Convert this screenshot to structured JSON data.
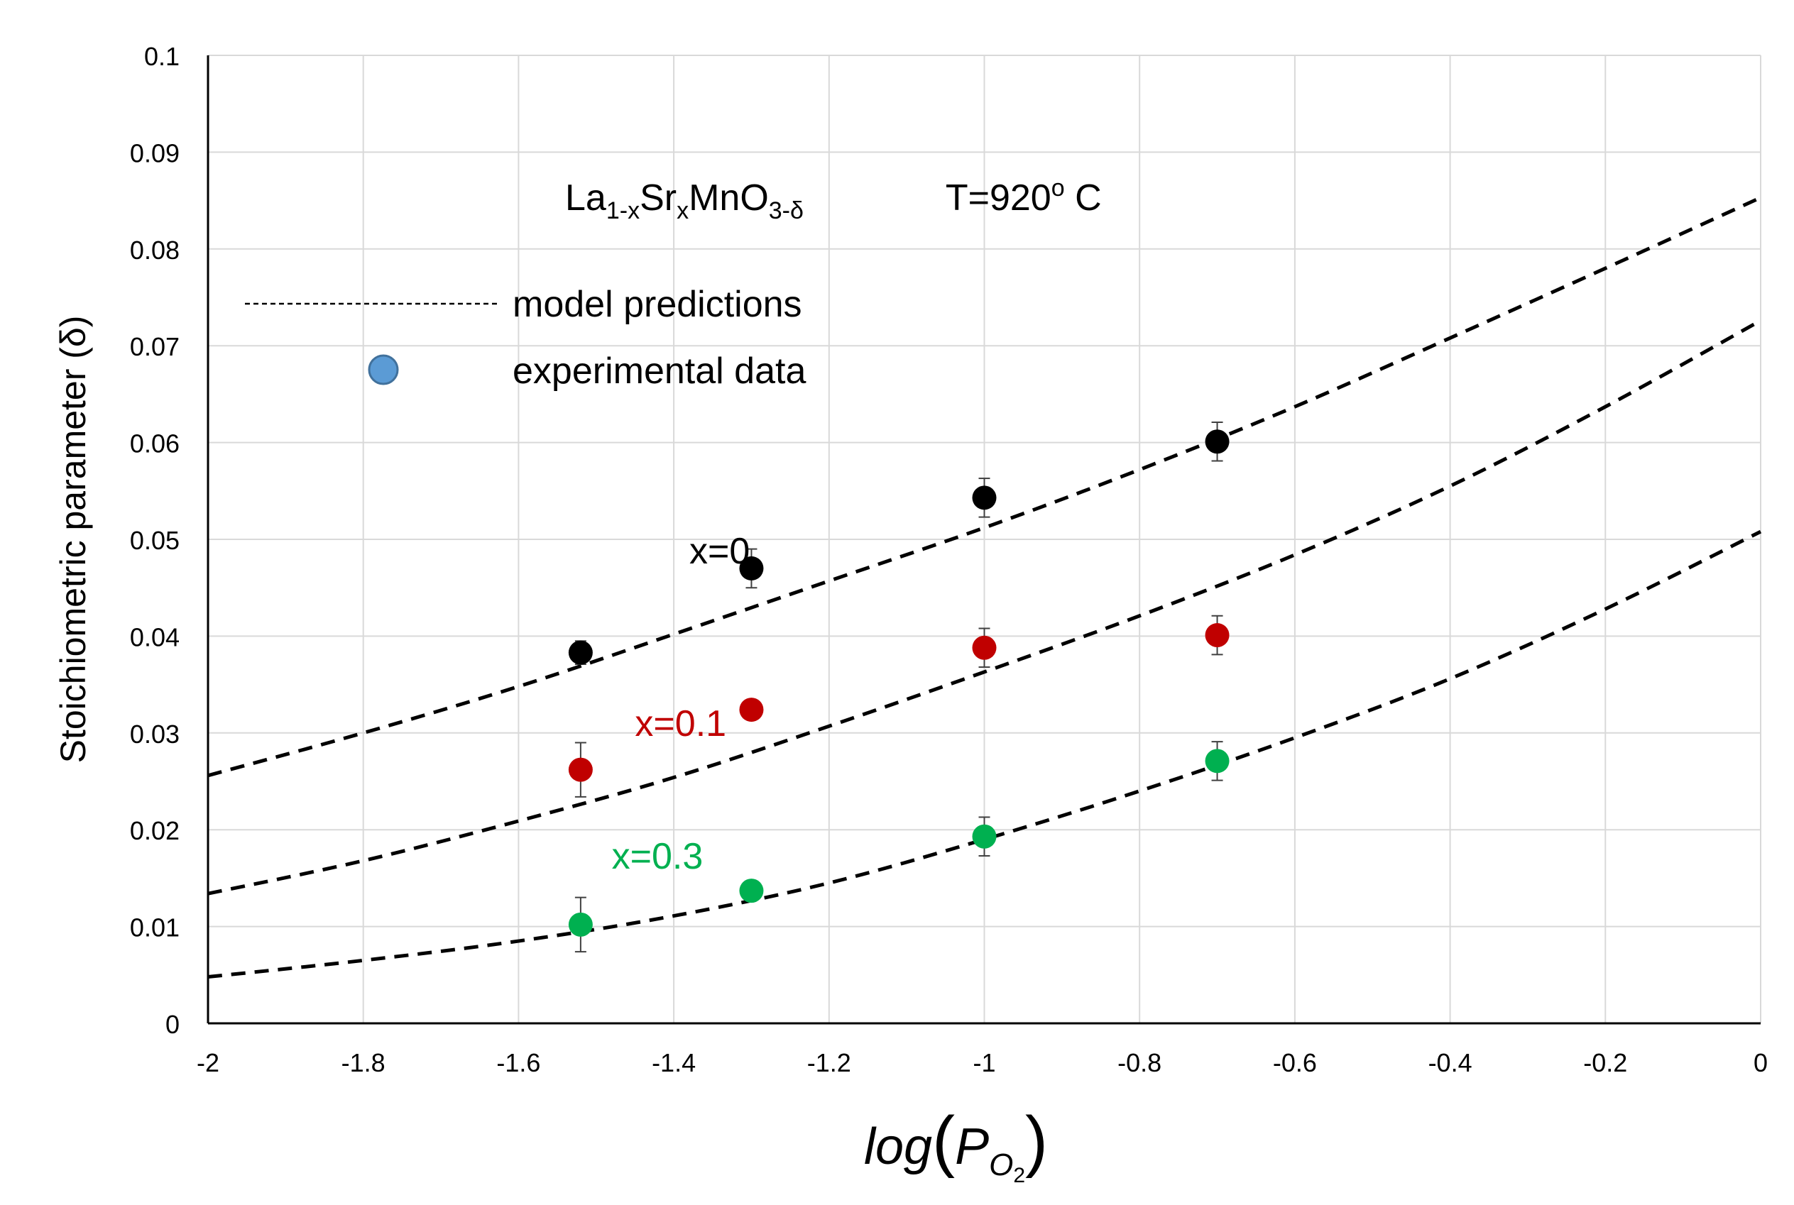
{
  "chart_data": {
    "type": "scatter",
    "title": "",
    "xlabel": {
      "base": "log",
      "open": "(",
      "p": "P",
      "sub": "O",
      "sub2": "2",
      "close": ")"
    },
    "ylabel": "Stoichiometric parameter (δ)",
    "xlim": [
      -2,
      0
    ],
    "ylim": [
      0,
      0.1
    ],
    "grid": true,
    "xticks": [
      -2,
      -1.8,
      -1.6,
      -1.4,
      -1.2,
      -1,
      -0.8,
      -0.6,
      -0.4,
      -0.2,
      0
    ],
    "xtick_labels": [
      "-2",
      "-1.8",
      "-1.6",
      "-1.4",
      "-1.2",
      "-1",
      "-0.8",
      "-0.6",
      "-0.4",
      "-0.2",
      "0"
    ],
    "yticks": [
      0,
      0.01,
      0.02,
      0.03,
      0.04,
      0.05,
      0.06,
      0.07,
      0.08,
      0.09,
      0.1
    ],
    "ytick_labels": [
      "0",
      "0.01",
      "0.02",
      "0.03",
      "0.04",
      "0.05",
      "0.06",
      "0.07",
      "0.08",
      "0.09",
      "0.1"
    ],
    "annotations": {
      "formula": {
        "la": "La",
        "la_sub": "1-x",
        "sr": "Sr",
        "sr_sub": "x",
        "mno": "MnO",
        "o_sub": "3-δ"
      },
      "temperature": {
        "pre": "T=920",
        "sup": "o",
        "post": " C"
      }
    },
    "legend": {
      "position": "top-left",
      "items": [
        {
          "label": "model predictions",
          "style": "dashed-line"
        },
        {
          "label": "experimental data",
          "style": "marker",
          "color": "#5b9bd5"
        }
      ]
    },
    "series": [
      {
        "name": "x=0",
        "color": "#000000",
        "label_color": "#000000",
        "label_anchor": [
          -1.38,
          0.0475
        ],
        "points": [
          {
            "x": -1.52,
            "y": 0.0383,
            "err": 0.0012
          },
          {
            "x": -1.3,
            "y": 0.047,
            "err": 0.002
          },
          {
            "x": -1.0,
            "y": 0.0543,
            "err": 0.002
          },
          {
            "x": -0.7,
            "y": 0.0601,
            "err": 0.002
          }
        ],
        "model": {
          "x": [
            -2,
            -1.8,
            -1.6,
            -1.4,
            -1.2,
            -1,
            -0.8,
            -0.6,
            -0.4,
            -0.2,
            0
          ],
          "y": [
            0.0256,
            0.03,
            0.0348,
            0.0402,
            0.0457,
            0.0512,
            0.0572,
            0.0637,
            0.0708,
            0.078,
            0.0853
          ]
        }
      },
      {
        "name": "x=0.1",
        "color": "#c00000",
        "label_color": "#c00000",
        "label_anchor": [
          -1.45,
          0.0297
        ],
        "points": [
          {
            "x": -1.52,
            "y": 0.0262,
            "err": 0.0028
          },
          {
            "x": -1.3,
            "y": 0.0324,
            "err": 0.001
          },
          {
            "x": -1.0,
            "y": 0.0388,
            "err": 0.002
          },
          {
            "x": -0.7,
            "y": 0.0401,
            "err": 0.002
          }
        ],
        "model": {
          "x": [
            -2,
            -1.8,
            -1.6,
            -1.4,
            -1.2,
            -1,
            -0.8,
            -0.6,
            -0.4,
            -0.2,
            0
          ],
          "y": [
            0.0134,
            0.0168,
            0.0209,
            0.0254,
            0.0307,
            0.0363,
            0.0421,
            0.0484,
            0.0555,
            0.0637,
            0.0726
          ]
        }
      },
      {
        "name": "x=0.3",
        "color": "#00b050",
        "label_color": "#00b050",
        "label_anchor": [
          -1.48,
          0.016
        ],
        "points": [
          {
            "x": -1.52,
            "y": 0.0102,
            "err": 0.0028
          },
          {
            "x": -1.3,
            "y": 0.0137,
            "err": 0.001
          },
          {
            "x": -1.0,
            "y": 0.0193,
            "err": 0.002
          },
          {
            "x": -0.7,
            "y": 0.0271,
            "err": 0.002
          }
        ],
        "model": {
          "x": [
            -2,
            -1.8,
            -1.6,
            -1.4,
            -1.2,
            -1,
            -0.8,
            -0.6,
            -0.4,
            -0.2,
            0
          ],
          "y": [
            0.0048,
            0.0065,
            0.0085,
            0.0111,
            0.0145,
            0.019,
            0.024,
            0.0295,
            0.0356,
            0.0428,
            0.0508
          ]
        }
      }
    ]
  }
}
